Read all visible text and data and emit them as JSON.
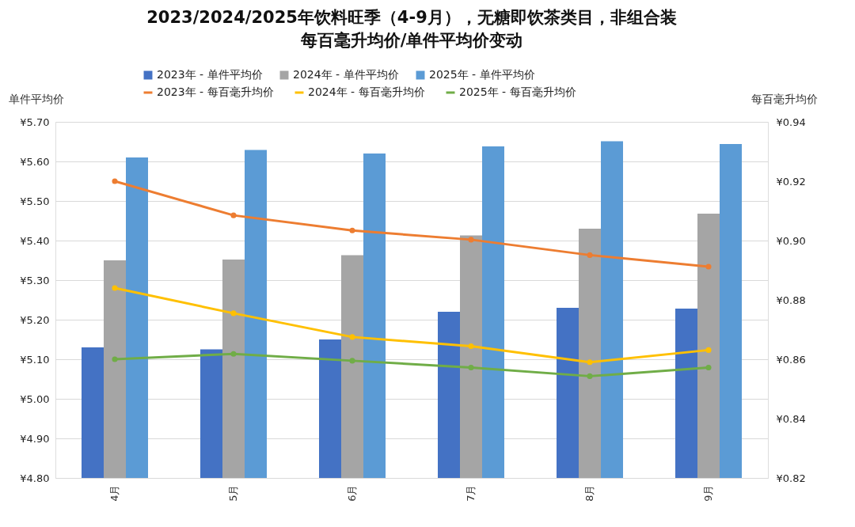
{
  "chart_data": {
    "type": "bar",
    "title": "2023/2024/2025年饮料旺季（4-9月），无糖即饮茶类目，非组合装",
    "subtitle": "每百毫升均价/单件平均价变动",
    "ylabel": "单件平均价",
    "y2label": "每百毫升均价",
    "categories": [
      "4月",
      "5月",
      "6月",
      "7月",
      "8月",
      "9月"
    ],
    "series": [
      {
        "name": "2023年 - 单件平均价",
        "color": "#4472c4",
        "values": [
          5.13,
          5.125,
          5.15,
          5.22,
          5.23,
          5.228
        ]
      },
      {
        "name": "2024年 - 单件平均价",
        "color": "#a5a5a5",
        "values": [
          5.35,
          5.352,
          5.363,
          5.413,
          5.43,
          5.468
        ]
      },
      {
        "name": "2025年 - 单件平均价",
        "color": "#5b9bd5",
        "values": [
          5.61,
          5.629,
          5.62,
          5.638,
          5.651,
          5.644
        ]
      },
      {
        "name": "2023年 - 每百毫升均价",
        "type": "line",
        "axis": "y2",
        "color": "#ed7d31",
        "values": [
          0.92,
          0.9085,
          0.9034,
          0.9003,
          0.8951,
          0.8912
        ]
      },
      {
        "name": "2024年 - 每百毫升均价",
        "type": "line",
        "axis": "y2",
        "color": "#ffc000",
        "values": [
          0.884,
          0.8755,
          0.8675,
          0.8644,
          0.859,
          0.8631
        ]
      },
      {
        "name": "2025年 - 每百毫升均价",
        "type": "line",
        "axis": "y2",
        "color": "#70ad47",
        "values": [
          0.86,
          0.8618,
          0.8595,
          0.8572,
          0.8543,
          0.8572
        ]
      }
    ],
    "ylim": [
      4.8,
      5.7
    ],
    "yticks": [
      {
        "value": 4.8,
        "label": "¥4.80"
      },
      {
        "value": 4.9,
        "label": "¥4.90"
      },
      {
        "value": 5.0,
        "label": "¥5.00"
      },
      {
        "value": 5.1,
        "label": "¥5.10"
      },
      {
        "value": 5.2,
        "label": "¥5.20"
      },
      {
        "value": 5.3,
        "label": "¥5.30"
      },
      {
        "value": 5.4,
        "label": "¥5.40"
      },
      {
        "value": 5.5,
        "label": "¥5.50"
      },
      {
        "value": 5.6,
        "label": "¥5.60"
      },
      {
        "value": 5.7,
        "label": "¥5.70"
      }
    ],
    "y2lim": [
      0.82,
      0.94
    ],
    "y2ticks": [
      {
        "value": 0.82,
        "label": "¥0.82"
      },
      {
        "value": 0.84,
        "label": "¥0.84"
      },
      {
        "value": 0.86,
        "label": "¥0.86"
      },
      {
        "value": 0.88,
        "label": "¥0.88"
      },
      {
        "value": 0.9,
        "label": "¥0.90"
      },
      {
        "value": 0.92,
        "label": "¥0.92"
      },
      {
        "value": 0.94,
        "label": "¥0.94"
      }
    ],
    "grid": "y",
    "legend": "top",
    "marker": "circle"
  }
}
